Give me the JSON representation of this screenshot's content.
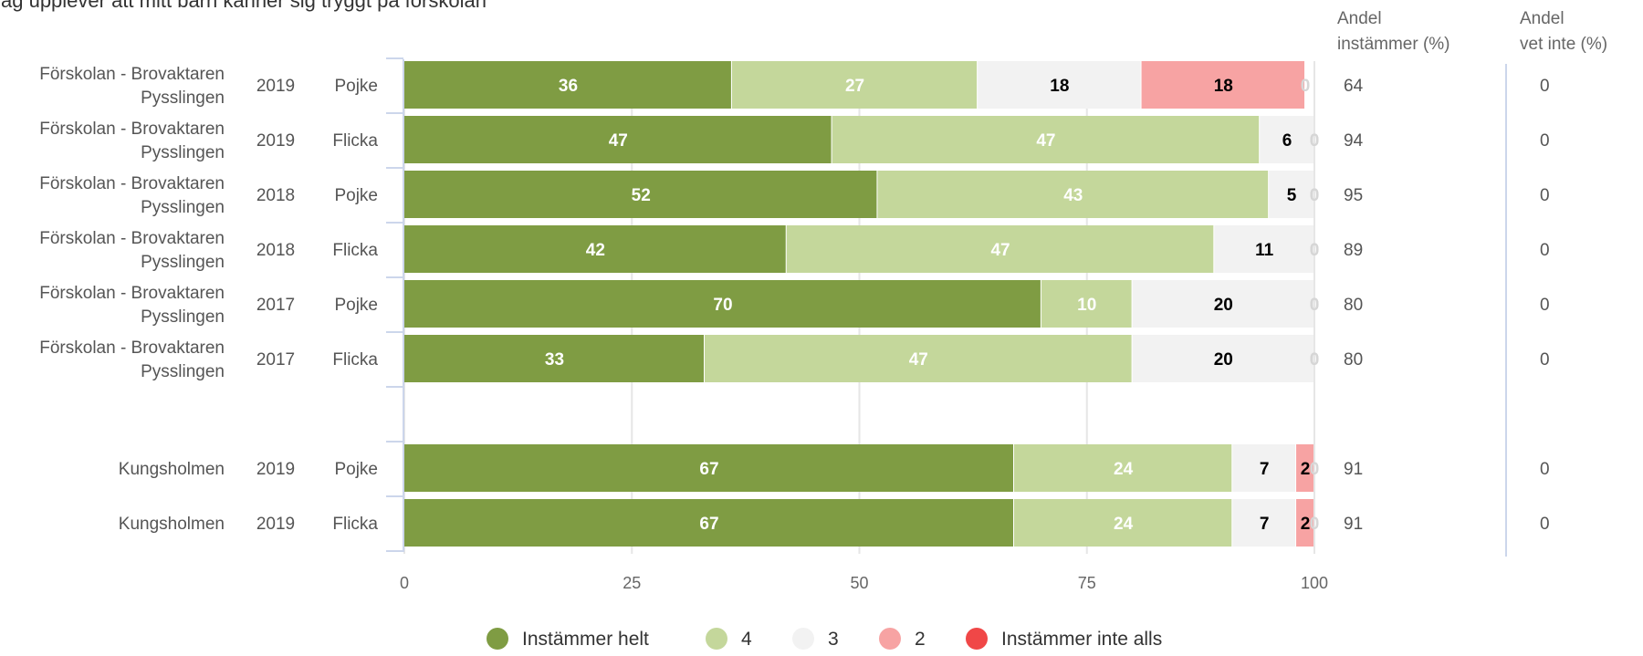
{
  "title": "Jag upplever att mitt barn känner sig tryggt på förskolan",
  "columns": {
    "col1_line1": "Andel",
    "col1_line2": "instämmer (%)",
    "col2_line1": "Andel",
    "col2_line2": "vet inte (%)"
  },
  "colors": {
    "Instämmer helt": "#7f9c43",
    "4": "#c4d79b",
    "3": "#f2f2f2",
    "2": "#f7a3a3",
    "Instämmer inte alls": "#f04747",
    "grid": "#e6e6e6",
    "axis": "#ccd6eb"
  },
  "chart_data": {
    "type": "bar",
    "orientation": "horizontal",
    "stacked": "percent",
    "title": "Jag upplever att mitt barn känner sig tryggt på förskolan",
    "xlim": [
      0,
      100
    ],
    "x_ticks": [
      "0",
      "25",
      "50",
      "75",
      "100"
    ],
    "grid": true,
    "legend_position": "bottom",
    "categories": [
      {
        "school": [
          "Förskolan - Brovaktaren",
          "Pysslingen"
        ],
        "year": "2019",
        "gender": "Pojke"
      },
      {
        "school": [
          "Förskolan - Brovaktaren",
          "Pysslingen"
        ],
        "year": "2019",
        "gender": "Flicka"
      },
      {
        "school": [
          "Förskolan - Brovaktaren",
          "Pysslingen"
        ],
        "year": "2018",
        "gender": "Pojke"
      },
      {
        "school": [
          "Förskolan - Brovaktaren",
          "Pysslingen"
        ],
        "year": "2018",
        "gender": "Flicka"
      },
      {
        "school": [
          "Förskolan - Brovaktaren",
          "Pysslingen"
        ],
        "year": "2017",
        "gender": "Pojke"
      },
      {
        "school": [
          "Förskolan - Brovaktaren",
          "Pysslingen"
        ],
        "year": "2017",
        "gender": "Flicka"
      },
      {
        "school": [],
        "year": "",
        "gender": "",
        "spacer": true
      },
      {
        "school": [
          "Kungsholmen"
        ],
        "year": "2019",
        "gender": "Pojke"
      },
      {
        "school": [
          "Kungsholmen"
        ],
        "year": "2019",
        "gender": "Flicka"
      }
    ],
    "series": [
      {
        "name": "Instämmer helt",
        "values": [
          36,
          47,
          52,
          42,
          70,
          33,
          null,
          67,
          67
        ]
      },
      {
        "name": "4",
        "values": [
          27,
          47,
          43,
          47,
          10,
          47,
          null,
          24,
          24
        ]
      },
      {
        "name": "3",
        "values": [
          18,
          6,
          5,
          11,
          20,
          20,
          null,
          7,
          7
        ]
      },
      {
        "name": "2",
        "values": [
          18,
          0,
          0,
          0,
          0,
          0,
          null,
          2,
          2
        ]
      },
      {
        "name": "Instämmer inte alls",
        "values": [
          0,
          0,
          0,
          0,
          0,
          0,
          null,
          0,
          0
        ]
      }
    ],
    "andel_instammer": [
      "64",
      "94",
      "95",
      "89",
      "80",
      "80",
      "",
      "91",
      "91"
    ],
    "andel_vet_inte": [
      "0",
      "0",
      "0",
      "0",
      "0",
      "0",
      "",
      "0",
      "0"
    ]
  }
}
